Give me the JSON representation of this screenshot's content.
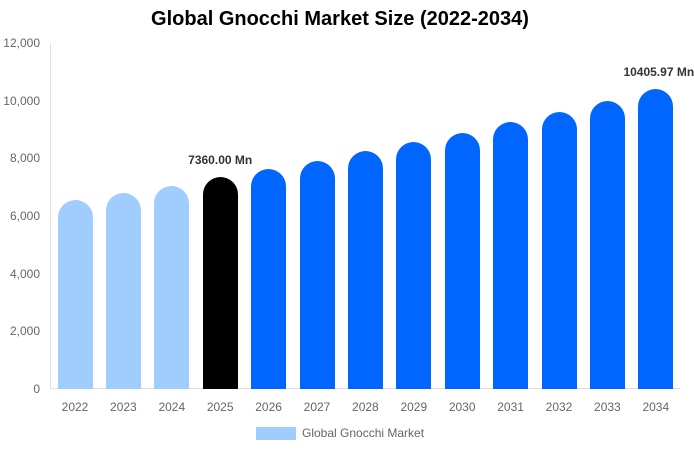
{
  "chart_data": {
    "type": "bar",
    "title": "Global Gnocchi Market Size (2022-2034)",
    "xlabel": "",
    "ylabel": "",
    "ylim": [
      0,
      12000
    ],
    "yticks": [
      "0",
      "2,000",
      "4,000",
      "6,000",
      "8,000",
      "10,000",
      "12,000"
    ],
    "grid": false,
    "legend_position": "bottom",
    "categories": [
      "2022",
      "2023",
      "2024",
      "2025",
      "2026",
      "2027",
      "2028",
      "2029",
      "2030",
      "2031",
      "2032",
      "2033",
      "2034"
    ],
    "series": [
      {
        "name": "Global Gnocchi Market",
        "values": [
          6540,
          6800,
          7040,
          7360.0,
          7620,
          7900,
          8250,
          8560,
          8880,
          9260,
          9600,
          9990,
          10405.97
        ],
        "colors": [
          "#a0cdfd",
          "#a0cdfd",
          "#a0cdfd",
          "#000000",
          "#0066ff",
          "#0066ff",
          "#0066ff",
          "#0066ff",
          "#0066ff",
          "#0066ff",
          "#0066ff",
          "#0066ff",
          "#0066ff"
        ]
      }
    ],
    "annotations": [
      {
        "category": "2025",
        "text": "7360.00 Mn"
      },
      {
        "category": "2034",
        "text": "10405.97 Mn"
      }
    ]
  },
  "legend": {
    "label": "Global Gnocchi Market",
    "color": "#a0cdfd"
  }
}
